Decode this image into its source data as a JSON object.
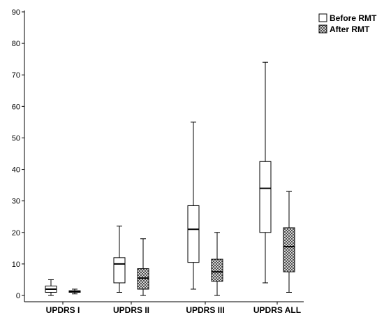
{
  "chart_data": {
    "type": "boxplot",
    "categories": [
      "UPDRS I",
      "UPDRS II",
      "UPDRS III",
      "UPDRS ALL"
    ],
    "ylim": [
      0,
      90
    ],
    "yticks": [
      0,
      10,
      20,
      30,
      40,
      50,
      60,
      70,
      80,
      90
    ],
    "ytick_labels": [
      "0",
      "10",
      "20",
      "30",
      "40",
      "50",
      "60",
      "70",
      "80",
      "90"
    ],
    "grid": false,
    "legend_position": "top-right",
    "series": [
      {
        "name": "Before RMT",
        "fill": "plain",
        "boxes": [
          {
            "min": 0,
            "q1": 1,
            "median": 2,
            "q3": 3,
            "max": 5
          },
          {
            "min": 1,
            "q1": 4,
            "median": 10,
            "q3": 12,
            "max": 22
          },
          {
            "min": 2,
            "q1": 10.5,
            "median": 21,
            "q3": 28.5,
            "max": 55
          },
          {
            "min": 4,
            "q1": 20,
            "median": 34,
            "q3": 42.5,
            "max": 74
          }
        ]
      },
      {
        "name": "After RMT",
        "fill": "crosshatch",
        "boxes": [
          {
            "min": 0.5,
            "q1": 1,
            "median": 1.2,
            "q3": 1.5,
            "max": 2
          },
          {
            "min": 0,
            "q1": 2,
            "median": 5.5,
            "q3": 8.5,
            "max": 18
          },
          {
            "min": 0,
            "q1": 4.5,
            "median": 7.5,
            "q3": 11.5,
            "max": 20
          },
          {
            "min": 1,
            "q1": 7.5,
            "median": 15.5,
            "q3": 21.5,
            "max": 33
          }
        ]
      }
    ]
  }
}
